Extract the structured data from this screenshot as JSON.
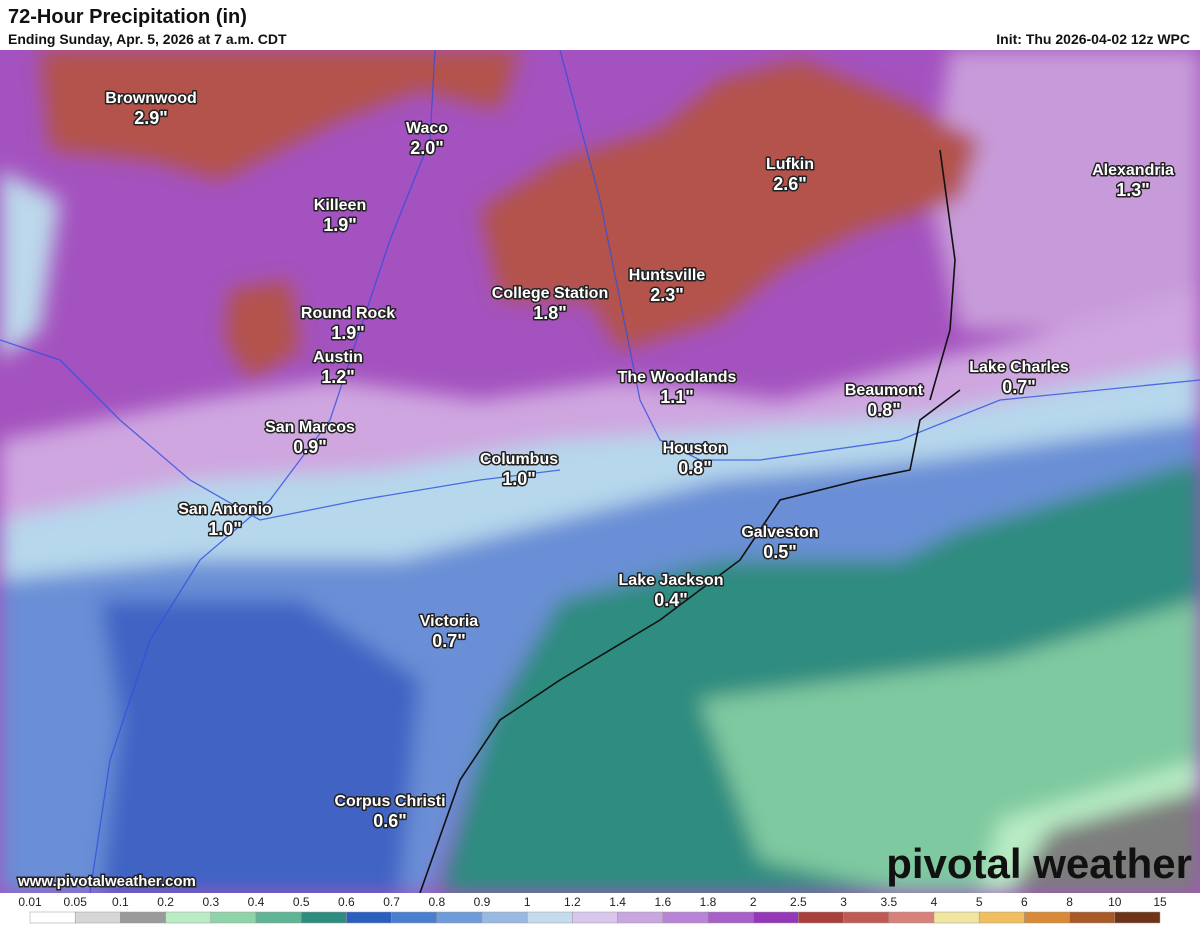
{
  "header": {
    "title": "72-Hour Precipitation (in)",
    "subtitle": "Ending Sunday, Apr. 5, 2026 at 7 a.m. CDT",
    "init": "Init: Thu 2026-04-02 12z WPC"
  },
  "cities": [
    {
      "name": "Brownwood",
      "amount": "2.9\""
    },
    {
      "name": "Waco",
      "amount": "2.0\""
    },
    {
      "name": "Killeen",
      "amount": "1.9\""
    },
    {
      "name": "Lufkin",
      "amount": "2.6\""
    },
    {
      "name": "Alexandria",
      "amount": "1.3\""
    },
    {
      "name": "Huntsville",
      "amount": "2.3\""
    },
    {
      "name": "College Station",
      "amount": "1.8\""
    },
    {
      "name": "Round Rock",
      "amount": "1.9\""
    },
    {
      "name": "Austin",
      "amount": "1.2\""
    },
    {
      "name": "The Woodlands",
      "amount": "1.1\""
    },
    {
      "name": "Beaumont",
      "amount": "0.8\""
    },
    {
      "name": "Lake Charles",
      "amount": "0.7\""
    },
    {
      "name": "San Marcos",
      "amount": "0.9\""
    },
    {
      "name": "Columbus",
      "amount": "1.0\""
    },
    {
      "name": "Houston",
      "amount": "0.8\""
    },
    {
      "name": "San Antonio",
      "amount": "1.0\""
    },
    {
      "name": "Galveston",
      "amount": "0.5\""
    },
    {
      "name": "Lake Jackson",
      "amount": "0.4\""
    },
    {
      "name": "Victoria",
      "amount": "0.7\""
    },
    {
      "name": "Corpus Christi",
      "amount": "0.6\""
    }
  ],
  "footer": {
    "website": "www.pivotalweather.com",
    "brand": "pivotal weather"
  },
  "scale": {
    "labels": [
      "0.01",
      "0.05",
      "0.1",
      "0.2",
      "0.3",
      "0.4",
      "0.5",
      "0.6",
      "0.7",
      "0.8",
      "0.9",
      "1",
      "1.2",
      "1.4",
      "1.6",
      "1.8",
      "2",
      "2.5",
      "3",
      "3.5",
      "4",
      "5",
      "6",
      "8",
      "10",
      "15"
    ],
    "colors": [
      "#ffffff",
      "#d6d6d6",
      "#9a9a9a",
      "#b9ecc4",
      "#8fd3a8",
      "#5fb494",
      "#2f8c80",
      "#2a5fc0",
      "#4a7fd0",
      "#6f9cd8",
      "#9ab9e2",
      "#c4dbee",
      "#d9c6ec",
      "#c8a6e0",
      "#b884d6",
      "#a660c8",
      "#9438b8",
      "#a8403c",
      "#c05a55",
      "#d8807a",
      "#f0e6a0",
      "#f0c060",
      "#d88a38",
      "#a85a28",
      "#6e3418"
    ]
  }
}
